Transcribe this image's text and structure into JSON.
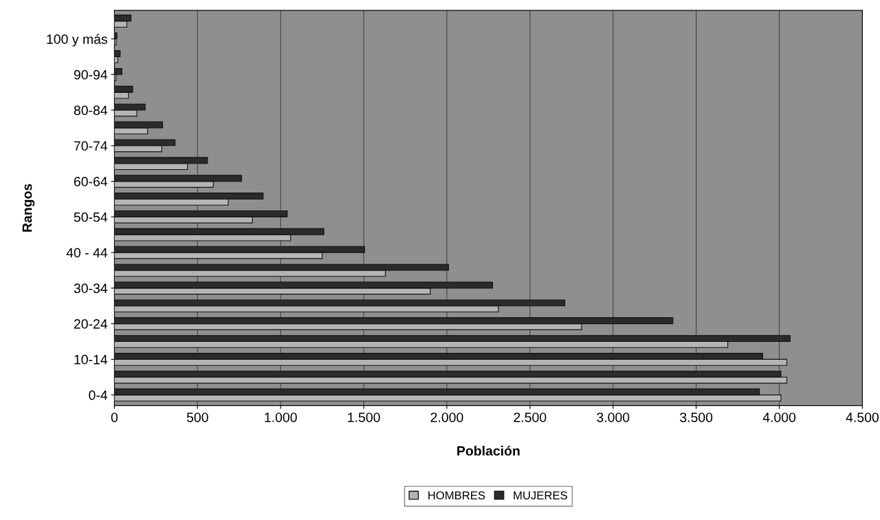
{
  "chart_data": {
    "type": "bar",
    "orientation": "horizontal",
    "xlabel": "Población",
    "ylabel": "Rangos",
    "categories": [
      null,
      "100 y más",
      null,
      "90-94",
      null,
      "80-84",
      null,
      "70-74",
      null,
      "60-64",
      null,
      "50-54",
      null,
      "40 - 44",
      null,
      "30-34",
      null,
      "20-24",
      null,
      "10-14",
      null,
      "0-4"
    ],
    "series": [
      {
        "name": "HOMBRES",
        "color": "#b4b4b4",
        "values": [
          75,
          10,
          20,
          10,
          85,
          135,
          200,
          285,
          440,
          595,
          685,
          830,
          1060,
          1250,
          1630,
          1900,
          2310,
          2810,
          3690,
          4045,
          4045,
          4010
        ]
      },
      {
        "name": "MUJERES",
        "color": "#2b2b2b",
        "values": [
          100,
          15,
          35,
          45,
          110,
          185,
          290,
          365,
          560,
          765,
          895,
          1040,
          1260,
          1505,
          2010,
          2275,
          2710,
          3360,
          4065,
          3900,
          4010,
          3880
        ]
      }
    ],
    "xlim": [
      0,
      4500
    ],
    "xticks": [
      0,
      {
        "value": 500,
        "label": "500"
      },
      {
        "value": 1000,
        "label": "1.000"
      },
      {
        "value": 1500,
        "label": "1.500"
      },
      {
        "value": 2000,
        "label": "2.000"
      },
      {
        "value": 2500,
        "label": "2.500"
      },
      {
        "value": 3000,
        "label": "3.000"
      },
      {
        "value": 3500,
        "label": "3.500"
      },
      {
        "value": 4000,
        "label": "4.000"
      },
      {
        "value": 4500,
        "label": "4.500"
      }
    ],
    "grid": "x",
    "legend": "bottom"
  }
}
